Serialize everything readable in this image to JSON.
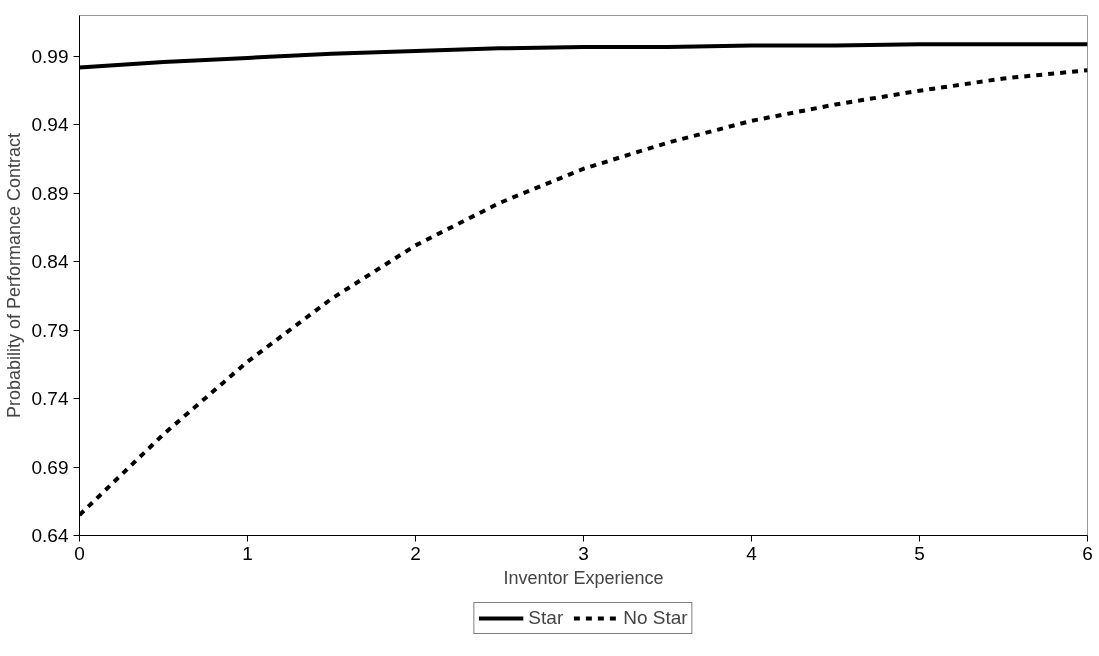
{
  "chart_data": {
    "type": "line",
    "xlabel": "Inventor Experience",
    "ylabel": "Probability of Performance Contract",
    "x": [
      0,
      0.5,
      1,
      1.5,
      2,
      2.5,
      3,
      3.5,
      4,
      4.5,
      5,
      5.5,
      6
    ],
    "series": [
      {
        "name": "Star",
        "color": "#000000",
        "line_style": "solid",
        "values": [
          0.982,
          0.986,
          0.989,
          0.992,
          0.994,
          0.996,
          0.997,
          0.997,
          0.998,
          0.998,
          0.999,
          0.999,
          0.999
        ]
      },
      {
        "name": "No Star",
        "color": "#000000",
        "line_style": "dashed",
        "values": [
          0.655,
          0.714,
          0.767,
          0.813,
          0.852,
          0.883,
          0.908,
          0.927,
          0.943,
          0.955,
          0.965,
          0.974,
          0.98
        ]
      }
    ],
    "xlim": [
      0,
      6
    ],
    "xticks": [
      0,
      1,
      2,
      3,
      4,
      5,
      6
    ],
    "ylim": [
      0.64,
      1.02
    ],
    "yticks": [
      0.64,
      0.69,
      0.74,
      0.79,
      0.84,
      0.89,
      0.94,
      0.99
    ],
    "grid": false,
    "legend": "bottom",
    "marker": "none"
  }
}
